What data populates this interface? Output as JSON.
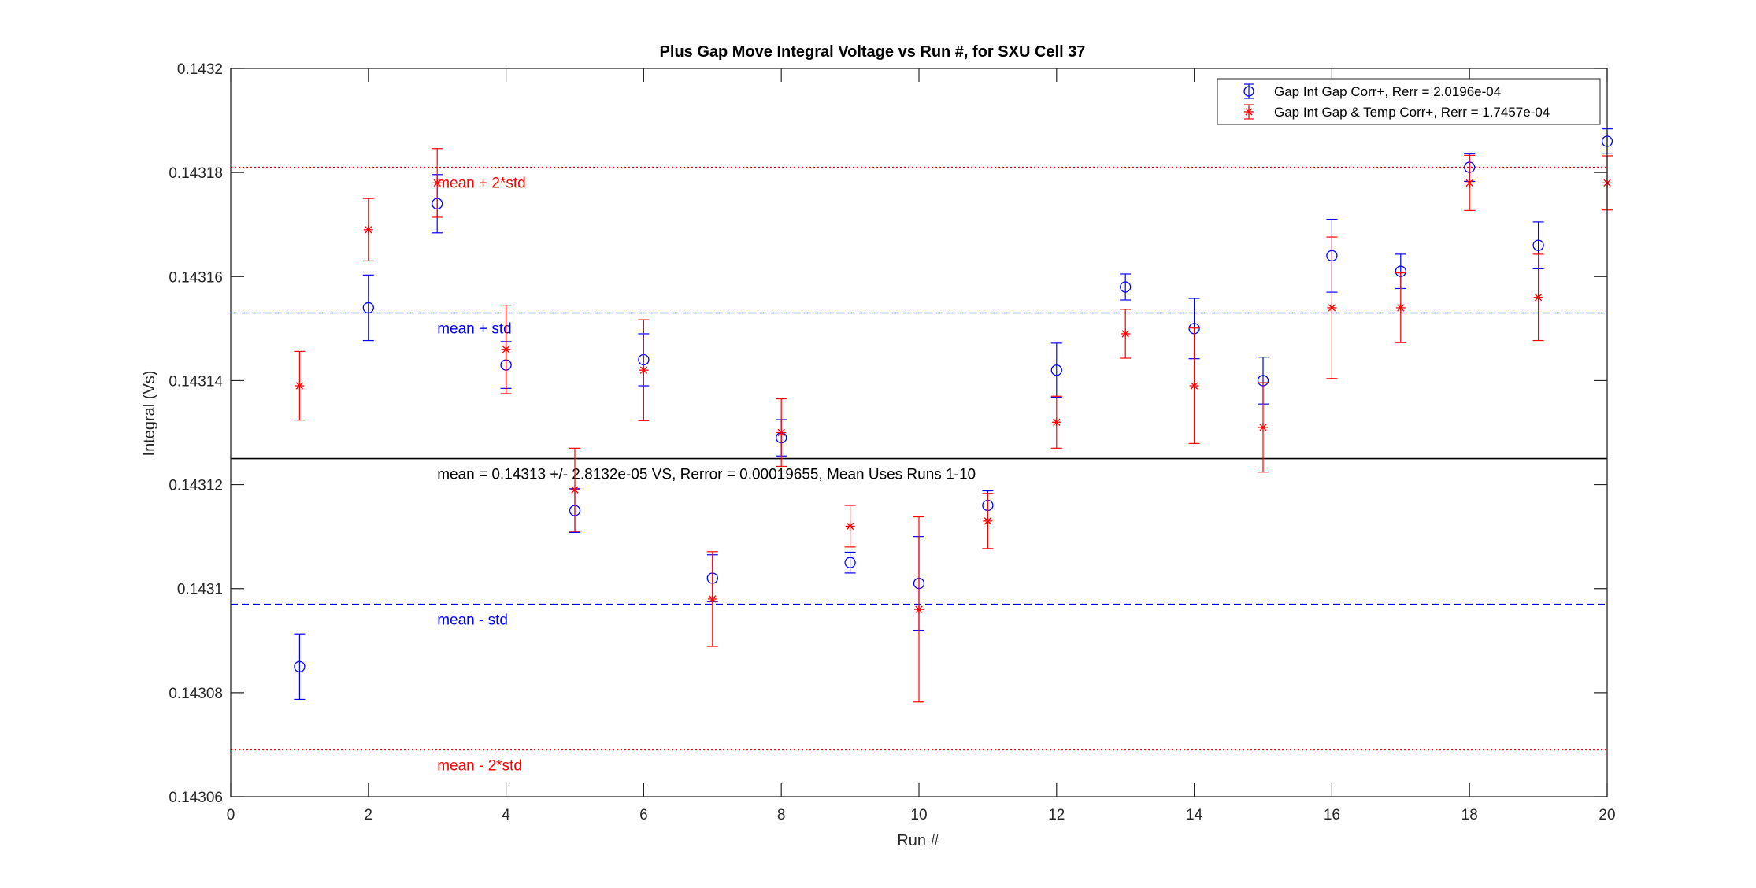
{
  "chart_data": {
    "type": "scatter",
    "title": "Plus Gap Move Integral Voltage vs Run #, for SXU Cell 37",
    "xlabel": "Run #",
    "ylabel": "Integral (Vs)",
    "xlim": [
      0,
      20
    ],
    "ylim": [
      0.14306,
      0.1432
    ],
    "x_ticks": [
      0,
      2,
      4,
      6,
      8,
      10,
      12,
      14,
      16,
      18,
      20
    ],
    "y_ticks": [
      0.14306,
      0.14308,
      0.1431,
      0.14312,
      0.14314,
      0.14316,
      0.14318,
      0.1432
    ],
    "y_tick_labels": [
      "0.14306",
      "0.14308",
      "0.1431",
      "0.14312",
      "0.14314",
      "0.14316",
      "0.14318",
      "0.1432"
    ],
    "grid": false,
    "legend_position": "top-right",
    "colors": {
      "blue": "#0000ff",
      "red": "#ff0000",
      "axis": "#262626"
    },
    "series": [
      {
        "name": "Gap Int Gap Corr+, Rerr = 2.0196e-04",
        "color": "#0000ff",
        "marker": "circle",
        "x": [
          1,
          2,
          3,
          4,
          5,
          6,
          7,
          8,
          9,
          10,
          11,
          12,
          13,
          14,
          15,
          16,
          17,
          18,
          19,
          20
        ],
        "y": [
          0.143085,
          0.143154,
          0.143174,
          0.143143,
          0.143115,
          0.143144,
          0.143102,
          0.143129,
          0.143105,
          0.143101,
          0.143116,
          0.143142,
          0.143158,
          0.14315,
          0.14314,
          0.143164,
          0.143161,
          0.143181,
          0.143166,
          0.143186
        ],
        "err": [
          6.3e-06,
          6.3e-06,
          5.6e-06,
          4.5e-06,
          4.2e-06,
          5e-06,
          4.5e-06,
          3.5e-06,
          2e-06,
          9e-06,
          2.8e-06,
          5.2e-06,
          2.5e-06,
          5.8e-06,
          4.5e-06,
          7e-06,
          3.3e-06,
          2.7e-06,
          4.5e-06,
          2.4e-06
        ]
      },
      {
        "name": "Gap Int Gap & Temp  Corr+, Rerr = 1.7457e-04",
        "color": "#ff0000",
        "marker": "asterisk",
        "x": [
          1,
          2,
          3,
          4,
          5,
          6,
          7,
          8,
          9,
          10,
          11,
          12,
          13,
          14,
          15,
          16,
          17,
          18,
          19,
          20
        ],
        "y": [
          0.143139,
          0.143169,
          0.143178,
          0.143146,
          0.143119,
          0.143142,
          0.143098,
          0.14313,
          0.143112,
          0.143096,
          0.143113,
          0.143132,
          0.143149,
          0.143139,
          0.143131,
          0.143154,
          0.143154,
          0.143178,
          0.143156,
          0.143178
        ],
        "err": [
          6.6e-06,
          6e-06,
          6.6e-06,
          8.5e-06,
          8e-06,
          9.7e-06,
          9.1e-06,
          6.5e-06,
          4e-06,
          1.78e-05,
          5.3e-06,
          5e-06,
          4.7e-06,
          1.11e-05,
          8.6e-06,
          1.36e-05,
          6.7e-06,
          5.3e-06,
          8.3e-06,
          5.2e-06
        ]
      }
    ],
    "reference_lines": [
      {
        "y": 0.143181,
        "style": "dotted",
        "color": "#ff0000",
        "label": "mean + 2*std"
      },
      {
        "y": 0.143153,
        "style": "dashed",
        "color": "#0000ff",
        "label": "mean + std"
      },
      {
        "y": 0.143125,
        "style": "solid",
        "color": "#000000",
        "label": "mean = 0.14313 +/- 2.8132e-05 VS, Rerror = 0.00019655, Mean Uses Runs 1-10"
      },
      {
        "y": 0.143097,
        "style": "dashed",
        "color": "#0000ff",
        "label": "mean - std"
      },
      {
        "y": 0.143069,
        "style": "dotted",
        "color": "#ff0000",
        "label": "mean - 2*std"
      }
    ],
    "reference_label_x": 3
  }
}
